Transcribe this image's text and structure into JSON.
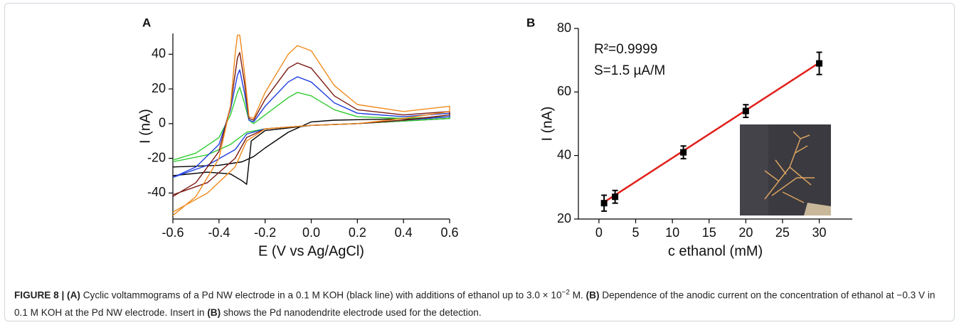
{
  "chart_data": [
    {
      "type": "line",
      "panel": "A",
      "xlabel": "E (V vs Ag/AgCl)",
      "ylabel": "I (nA)",
      "xlim": [
        -0.6,
        0.6
      ],
      "xticks": [
        -0.6,
        -0.4,
        -0.2,
        {
          "value": 0,
          "label": "0.0"
        },
        0.2,
        0.4,
        0.6
      ],
      "ylim": [
        -55,
        52
      ],
      "yticks": [
        -40,
        -20,
        0,
        20,
        40
      ],
      "series": [
        {
          "color": "#000000",
          "x": [
            -0.6,
            -0.4,
            -0.3,
            -0.25,
            -0.2,
            -0.1,
            0,
            0.1,
            0.3,
            0.5,
            0.6,
            0.6,
            0.4,
            0.2,
            0,
            -0.2,
            -0.26,
            -0.28,
            -0.3,
            -0.35,
            -0.45,
            -0.6
          ],
          "values": [
            -25,
            -24,
            -22,
            -19,
            -14,
            -5,
            1,
            2,
            2.5,
            3,
            4,
            3,
            1.5,
            0,
            -1,
            -4,
            -10,
            -35,
            -33,
            -29,
            -28,
            -30
          ]
        },
        {
          "color": "#2ecc2e",
          "x": [
            -0.6,
            -0.5,
            -0.4,
            -0.35,
            -0.32,
            -0.31,
            -0.29,
            -0.27,
            -0.25,
            -0.2,
            -0.1,
            -0.06,
            0,
            0.1,
            0.2,
            0.4,
            0.6,
            0.6,
            0.4,
            0.2,
            0,
            -0.2,
            -0.28,
            -0.35,
            -0.45,
            -0.6
          ],
          "values": [
            -21,
            -17,
            -8,
            5,
            18,
            21,
            12,
            2,
            0,
            5,
            15,
            18,
            16,
            8,
            4,
            3,
            4,
            3,
            1.5,
            0,
            -1,
            -3,
            -5,
            -12,
            -18,
            -22
          ]
        },
        {
          "color": "#1f3fe0",
          "x": [
            -0.6,
            -0.5,
            -0.4,
            -0.35,
            -0.32,
            -0.31,
            -0.29,
            -0.27,
            -0.25,
            -0.2,
            -0.1,
            -0.06,
            0,
            0.1,
            0.2,
            0.4,
            0.6,
            0.6,
            0.4,
            0.2,
            0,
            -0.2,
            -0.28,
            -0.33,
            -0.45,
            -0.6
          ],
          "values": [
            -31,
            -25,
            -12,
            8,
            28,
            31,
            18,
            2,
            1,
            10,
            24,
            27,
            24,
            12,
            6,
            4,
            6,
            4,
            2,
            0,
            -1,
            -3,
            -6,
            -15,
            -24,
            -31
          ]
        },
        {
          "color": "#7a1a12",
          "x": [
            -0.6,
            -0.5,
            -0.4,
            -0.35,
            -0.32,
            -0.31,
            -0.29,
            -0.27,
            -0.25,
            -0.2,
            -0.1,
            -0.06,
            0,
            0.1,
            0.2,
            0.4,
            0.6,
            0.6,
            0.4,
            0.2,
            0,
            -0.2,
            -0.28,
            -0.33,
            -0.45,
            -0.6
          ],
          "values": [
            -42,
            -34,
            -16,
            10,
            38,
            41,
            24,
            3,
            2,
            14,
            32,
            35,
            32,
            16,
            8,
            5,
            7,
            5,
            2,
            0,
            -1,
            -3,
            -8,
            -20,
            -34,
            -41
          ]
        },
        {
          "color": "#f08a1c",
          "x": [
            -0.6,
            -0.5,
            -0.4,
            -0.35,
            -0.33,
            -0.32,
            -0.31,
            -0.29,
            -0.27,
            -0.25,
            -0.2,
            -0.1,
            -0.06,
            0,
            0.1,
            0.2,
            0.4,
            0.6,
            0.6,
            0.4,
            0.2,
            0,
            -0.2,
            -0.28,
            -0.33,
            -0.45,
            -0.6
          ],
          "values": [
            -53,
            -42,
            -20,
            10,
            40,
            51,
            51,
            30,
            4,
            3,
            18,
            40,
            45,
            42,
            22,
            11,
            7,
            10,
            7,
            3,
            0,
            -1,
            -3,
            -10,
            -25,
            -40,
            -51
          ]
        }
      ]
    },
    {
      "type": "scatter",
      "panel": "B",
      "xlabel": "c ethanol (mM)",
      "ylabel": "I (nA)",
      "annotations": [
        "R²=0.9999",
        "S=1.5 µA/M"
      ],
      "xlim": [
        -2.8,
        34.5
      ],
      "xticks": [
        0,
        5,
        10,
        15,
        20,
        25,
        30
      ],
      "ylim": [
        20,
        80
      ],
      "yticks": [
        20,
        40,
        60,
        80
      ],
      "series": [
        {
          "color": "#000000",
          "x": [
            0.7,
            2.2,
            11.5,
            20,
            30
          ],
          "values": [
            25,
            27,
            41,
            54,
            69
          ],
          "errors": [
            2.5,
            2,
            2,
            2,
            3.5
          ]
        }
      ],
      "fit": {
        "color": "#e0201a",
        "x": [
          0.7,
          30
        ],
        "values": [
          25.3,
          69.2
        ]
      }
    }
  ],
  "caption": [
    {
      "text": "FIGURE 8 | (A)",
      "bold": true
    },
    {
      "text": " Cyclic voltammograms of a Pd NW electrode in a 0.1 M KOH (black line) with additions of ethanol up to 3.0 × 10",
      "bold": false
    },
    {
      "text": "−2",
      "bold": false,
      "sup": true
    },
    {
      "text": " M. ",
      "bold": false
    },
    {
      "text": "(B)",
      "bold": true
    },
    {
      "text": " Dependence of the anodic current on the concentration of ethanol at −0.3 V in 0.1 M KOH at the Pd NW electrode. Insert in ",
      "bold": false
    },
    {
      "text": "(B)",
      "bold": true
    },
    {
      "text": " shows the Pd nanodendrite electrode used for the detection.",
      "bold": false
    }
  ]
}
